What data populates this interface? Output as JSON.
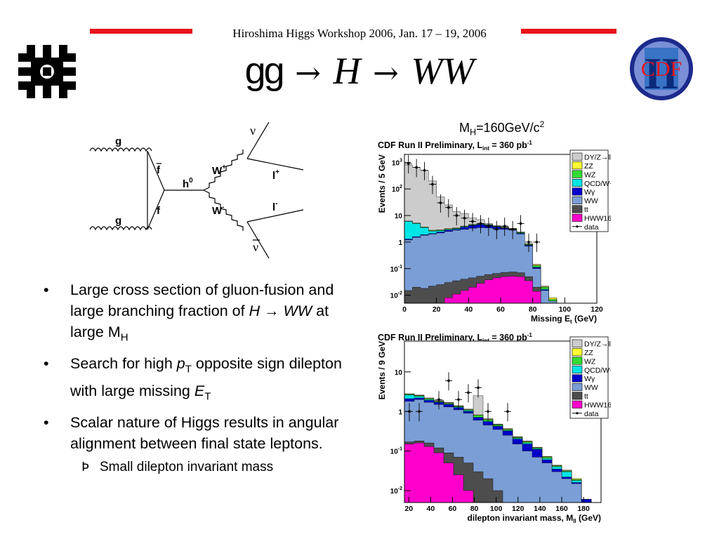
{
  "header": {
    "workshop": "Hiroshima Higgs Workshop 2006, Jan. 17 – 19, 2006",
    "colors": {
      "accent": "#e8141b"
    }
  },
  "title": {
    "part1": "gg",
    "arrow1": "→",
    "H": "H",
    "arrow2": "→",
    "WW": "WW"
  },
  "logos": {
    "left": "fermilab-logo",
    "right_text": "CDF",
    "right_numeral": "II"
  },
  "feynman": {
    "labels": {
      "g_top": "g",
      "g_bottom": "g",
      "fbar": "f",
      "f": "f",
      "h0": "h",
      "h0_sup": "0",
      "wplus": "W",
      "wplus_sup": "+",
      "wminus": "W",
      "wminus_sup": "-",
      "nu": "ν",
      "lplus": "l",
      "lplus_sup": "+",
      "lminus": "l",
      "lminus_sup": "-",
      "nubar": "ν"
    }
  },
  "mass_label": {
    "text": "M",
    "sub": "H",
    "rest": "=160GeV/c",
    "sup": "2"
  },
  "bullets": {
    "b1_line": "Large cross section of gluon-fusion and large branching fraction of ",
    "b1_H": "H",
    "b1_arrow": " → ",
    "b1_WW": "WW",
    "b1_tail": " at large M",
    "b1_sub": "H",
    "b2_a": "Search for high ",
    "b2_p": "p",
    "b2_psub": "T",
    "b2_b": " opposite sign dilepton with large missing ",
    "b2_E": "E",
    "b2_Esub": "T",
    "b3": "Scalar nature of Higgs results in angular alignment between final state leptons.",
    "sub1": "Small dilepton invariant mass",
    "bullet_glyph": "•",
    "sub_glyph": "Þ"
  },
  "chart_data": [
    {
      "type": "area",
      "title": "CDF Run II Preliminary, L",
      "title_sub": "int",
      "title_tail": " = 360 pb",
      "title_sup": "-1",
      "xlabel": "Missing E",
      "xlabel_sub": "t",
      "xlabel_tail": " (GeV)",
      "ylabel": "Events / 5 GeV",
      "log_y": true,
      "xlim": [
        0,
        120
      ],
      "ylim": [
        0.005,
        2000
      ],
      "x_ticks": [
        "0",
        "20",
        "40",
        "60",
        "80",
        "100",
        "120"
      ],
      "y_ticks": [
        {
          "v": 0.01,
          "t": "10",
          "sup": "-2"
        },
        {
          "v": 0.1,
          "t": "10",
          "sup": "-1"
        },
        {
          "v": 1,
          "t": "1",
          "sup": ""
        },
        {
          "v": 10,
          "t": "10",
          "sup": ""
        },
        {
          "v": 100,
          "t": "10",
          "sup": "2"
        },
        {
          "v": 1000,
          "t": "10",
          "sup": "3"
        }
      ],
      "bin_edges": [
        0,
        5,
        10,
        15,
        20,
        25,
        30,
        35,
        40,
        45,
        50,
        55,
        60,
        65,
        70,
        75,
        80,
        85,
        90,
        95,
        100,
        105,
        110,
        115,
        120
      ],
      "stack_tops": [
        {
          "name": "HWW160",
          "color": "#ff00cc",
          "values": [
            0.002,
            0.002,
            0.002,
            0.003,
            0.005,
            0.008,
            0.011,
            0.015,
            0.02,
            0.028,
            0.038,
            0.045,
            0.05,
            0.052,
            0.05,
            0.035,
            0.014,
            0.003,
            0.001,
            0.001,
            0.001,
            0.001,
            0.001,
            0.001
          ]
        },
        {
          "name": "tt",
          "color": "#4d4d4d",
          "values": [
            0.015,
            0.02,
            0.018,
            0.022,
            0.025,
            0.03,
            0.035,
            0.04,
            0.045,
            0.052,
            0.06,
            0.066,
            0.072,
            0.075,
            0.07,
            0.05,
            0.02,
            0.005,
            0.001,
            0.001,
            0.001,
            0.001,
            0.001,
            0.001
          ]
        },
        {
          "name": "WW",
          "color": "#7b9ed6",
          "values": [
            1.2,
            1.5,
            1.8,
            2.0,
            2.2,
            2.5,
            2.8,
            3.0,
            3.3,
            3.5,
            3.4,
            3.2,
            3.0,
            2.8,
            2.0,
            0.7,
            0.1,
            0.015,
            0.006,
            0.001,
            0.001,
            0.001,
            0.001,
            0.001
          ]
        },
        {
          "name": "Wγ",
          "color": "#0000cc",
          "values": [
            1.3,
            1.6,
            1.9,
            2.1,
            2.4,
            2.8,
            3.0,
            3.6,
            4.2,
            4.5,
            4.2,
            3.7,
            3.3,
            2.9,
            2.1,
            0.75,
            0.11,
            0.016,
            0.006,
            0.001,
            0.001,
            0.001,
            0.001,
            0.001
          ]
        },
        {
          "name": "QCD/W+jet",
          "color": "#00e5e5",
          "values": [
            6,
            5,
            3.5,
            2.6,
            2.7,
            3.0,
            3.2,
            3.8,
            4.4,
            4.7,
            4.4,
            3.8,
            3.4,
            3.0,
            2.2,
            0.78,
            0.115,
            0.017,
            0.006,
            0.001,
            0.001,
            0.001,
            0.001,
            0.001
          ]
        },
        {
          "name": "WZ",
          "color": "#33dd33",
          "values": [
            6.1,
            5.1,
            3.6,
            2.7,
            2.8,
            3.1,
            3.3,
            3.9,
            4.5,
            4.8,
            4.5,
            3.9,
            3.5,
            3.1,
            2.3,
            0.82,
            0.13,
            0.02,
            0.007,
            0.001,
            0.001,
            0.001,
            0.001,
            0.001
          ]
        },
        {
          "name": "ZZ",
          "color": "#ffff33",
          "values": [
            6.2,
            5.2,
            3.7,
            2.8,
            2.9,
            3.2,
            3.4,
            4.0,
            4.6,
            4.9,
            4.6,
            4.0,
            3.6,
            3.2,
            2.35,
            0.85,
            0.14,
            0.021,
            0.008,
            0.001,
            0.001,
            0.001,
            0.001,
            0.001
          ]
        },
        {
          "name": "DY/Z→ll",
          "color": "#cccccc",
          "values": [
            800,
            650,
            500,
            200,
            50,
            25,
            14,
            12,
            8,
            7,
            5,
            4.2,
            3.8,
            3.3,
            2.4,
            0.87,
            0.145,
            0.022,
            0.008,
            0.001,
            0.001,
            0.001,
            0.001,
            0.001
          ]
        }
      ],
      "data_points": [
        {
          "x": 2.5,
          "y": 900
        },
        {
          "x": 7.5,
          "y": 650
        },
        {
          "x": 12.5,
          "y": 500
        },
        {
          "x": 17.5,
          "y": 150
        },
        {
          "x": 22.5,
          "y": 30
        },
        {
          "x": 27.5,
          "y": 20
        },
        {
          "x": 32.5,
          "y": 10
        },
        {
          "x": 37.5,
          "y": 8
        },
        {
          "x": 42.5,
          "y": 6
        },
        {
          "x": 47.5,
          "y": 5
        },
        {
          "x": 52.5,
          "y": 4
        },
        {
          "x": 57.5,
          "y": 3
        },
        {
          "x": 62.5,
          "y": 4
        },
        {
          "x": 67.5,
          "y": 3
        },
        {
          "x": 72.5,
          "y": 5
        },
        {
          "x": 77.5,
          "y": 1
        },
        {
          "x": 82.5,
          "y": 1
        }
      ],
      "legend": [
        "DY/Z→ll",
        "ZZ",
        "WZ",
        "QCD/W+jet",
        "Wγ",
        "WW",
        "tt",
        "HWW160",
        "data"
      ],
      "legend_colors": [
        "#cccccc",
        "#ffff33",
        "#33dd33",
        "#00e5e5",
        "#0000cc",
        "#7b9ed6",
        "#4d4d4d",
        "#ff00cc",
        "#000000"
      ],
      "legend_position": "top-right"
    },
    {
      "type": "area",
      "title": "CDF Run II Preliminary, L",
      "title_sub": "int",
      "title_tail": " = 360 pb",
      "title_sup": "-1",
      "xlabel": "dilepton invariant mass, M",
      "xlabel_sub": "ll",
      "xlabel_tail": " (GeV)",
      "ylabel": "Events / 9 GeV",
      "log_y": true,
      "xlim": [
        16,
        196
      ],
      "ylim": [
        0.005,
        60
      ],
      "x_ticks": [
        "20",
        "40",
        "60",
        "80",
        "100",
        "120",
        "140",
        "160",
        "180"
      ],
      "y_ticks": [
        {
          "v": 0.01,
          "t": "10",
          "sup": "-2"
        },
        {
          "v": 0.1,
          "t": "10",
          "sup": "-1"
        },
        {
          "v": 1,
          "t": "1",
          "sup": ""
        },
        {
          "v": 10,
          "t": "10",
          "sup": ""
        }
      ],
      "bin_edges": [
        16,
        25,
        34,
        43,
        52,
        61,
        70,
        79,
        88,
        97,
        106,
        115,
        124,
        133,
        142,
        151,
        160,
        169,
        178,
        187,
        196
      ],
      "stack_tops": [
        {
          "name": "HWW160",
          "color": "#ff00cc",
          "values": [
            0.15,
            0.16,
            0.13,
            0.09,
            0.05,
            0.025,
            0.01,
            0.004,
            0.001,
            0.001,
            0.001,
            0.001,
            0.001,
            0.001,
            0.001,
            0.001,
            0.001,
            0.001,
            0.001,
            0.001
          ]
        },
        {
          "name": "tt",
          "color": "#4d4d4d",
          "values": [
            0.17,
            0.18,
            0.16,
            0.12,
            0.09,
            0.07,
            0.05,
            0.03,
            0.02,
            0.01,
            0.005,
            0.002,
            0.001,
            0.001,
            0.001,
            0.001,
            0.001,
            0.001,
            0.001,
            0.001
          ]
        },
        {
          "name": "WW",
          "color": "#7b9ed6",
          "values": [
            1.8,
            2.0,
            1.7,
            1.5,
            1.3,
            1.1,
            0.9,
            0.6,
            0.45,
            0.35,
            0.25,
            0.15,
            0.1,
            0.07,
            0.05,
            0.03,
            0.02,
            0.015,
            0.005,
            0.001
          ]
        },
        {
          "name": "Wγ",
          "color": "#0000cc",
          "values": [
            2.1,
            2.2,
            1.9,
            1.7,
            1.5,
            1.25,
            1.0,
            0.7,
            0.55,
            0.42,
            0.32,
            0.2,
            0.15,
            0.11,
            0.06,
            0.035,
            0.022,
            0.016,
            0.006,
            0.001
          ]
        },
        {
          "name": "QCD/W+jet",
          "color": "#00e5e5",
          "values": [
            2.6,
            2.4,
            2.0,
            1.75,
            1.55,
            1.3,
            1.05,
            0.72,
            0.57,
            0.43,
            0.33,
            0.21,
            0.16,
            0.115,
            0.065,
            0.04,
            0.03,
            0.018,
            0.006,
            0.001
          ]
        },
        {
          "name": "WZ",
          "color": "#33dd33",
          "values": [
            2.7,
            2.5,
            2.1,
            1.8,
            1.6,
            1.35,
            1.1,
            0.8,
            0.62,
            0.46,
            0.35,
            0.22,
            0.17,
            0.12,
            0.07,
            0.042,
            0.031,
            0.019,
            0.006,
            0.001
          ]
        },
        {
          "name": "ZZ",
          "color": "#ffff33",
          "values": [
            2.75,
            2.55,
            2.15,
            1.85,
            1.65,
            1.38,
            1.12,
            0.82,
            0.64,
            0.47,
            0.36,
            0.225,
            0.175,
            0.123,
            0.072,
            0.043,
            0.032,
            0.02,
            0.006,
            0.001
          ]
        },
        {
          "name": "DY/Z→ll",
          "color": "#cccccc",
          "values": [
            2.8,
            2.6,
            2.2,
            1.9,
            1.7,
            1.4,
            1.15,
            2.5,
            0.66,
            0.48,
            0.37,
            0.23,
            0.18,
            0.125,
            0.073,
            0.044,
            0.033,
            0.02,
            0.006,
            0.001
          ]
        }
      ],
      "data_points": [
        {
          "x": 20.5,
          "y": 1
        },
        {
          "x": 29.5,
          "y": 1
        },
        {
          "x": 47.5,
          "y": 2
        },
        {
          "x": 56.5,
          "y": 6
        },
        {
          "x": 65.5,
          "y": 2
        },
        {
          "x": 74.5,
          "y": 3
        },
        {
          "x": 83.5,
          "y": 4
        },
        {
          "x": 92.5,
          "y": 1
        },
        {
          "x": 110.5,
          "y": 1
        }
      ],
      "legend": [
        "DY/Z→ll",
        "ZZ",
        "WZ",
        "QCD/W+jet",
        "Wγ",
        "WW",
        "tt",
        "HWW160",
        "data"
      ],
      "legend_colors": [
        "#cccccc",
        "#ffff33",
        "#33dd33",
        "#00e5e5",
        "#0000cc",
        "#7b9ed6",
        "#4d4d4d",
        "#ff00cc",
        "#000000"
      ],
      "legend_position": "top-right"
    }
  ]
}
